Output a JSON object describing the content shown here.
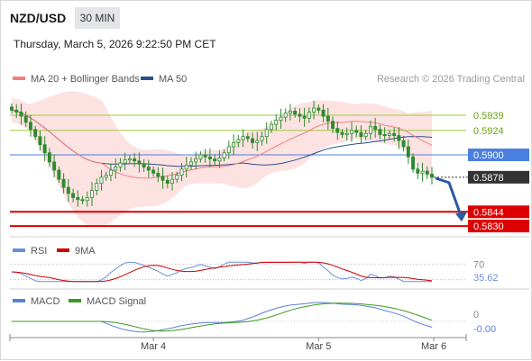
{
  "header": {
    "pair": "NZD/USD",
    "timeframe": "30 MIN",
    "datetime": "Thursday, March 5, 2026 9:22:50 PM CET",
    "credit": "Research © 2026 Trading Central"
  },
  "legend": {
    "ma20_bb": "MA 20 + Bollinger Bands",
    "ma50": "MA 50",
    "rsi": "RSI",
    "rsi_ma": "9MA",
    "macd": "MACD",
    "macd_signal": "MACD Signal"
  },
  "colors": {
    "ma20": "#f08080",
    "ma50": "#2c4f8c",
    "bollinger_fill": "#fde2e2",
    "candle": "#2f8a2f",
    "green_level": "#9acd32",
    "blue_level": "#4a7fe0",
    "red_level": "#dd0000",
    "current_price_tag": "#333333",
    "forecast_arrow": "#2a5aa0",
    "rsi": "#6a8fd8",
    "rsi_ma": "#cc0000",
    "macd": "#5b7fd6",
    "macd_signal": "#3c9a1e"
  },
  "chart_data": {
    "type": "candlestick",
    "ylim": [
      0.5823,
      0.5954
    ],
    "x_labels": [
      "Mar 4",
      "Mar 5",
      "Mar 6"
    ],
    "levels": [
      {
        "name": "resistance-2",
        "value": 0.5939,
        "label": "0.5939",
        "kind": "green"
      },
      {
        "name": "resistance-1",
        "value": 0.5924,
        "label": "0.5924",
        "kind": "green"
      },
      {
        "name": "pivot",
        "value": 0.59,
        "label": "0.5900",
        "kind": "blue"
      },
      {
        "name": "support-1",
        "value": 0.5844,
        "label": "0.5844",
        "kind": "red"
      },
      {
        "name": "support-2",
        "value": 0.583,
        "label": "0.5830",
        "kind": "red"
      }
    ],
    "current_price": {
      "value": 0.5878,
      "label": "0.5878"
    },
    "forecast": {
      "from": 0.5878,
      "to": 0.5844
    },
    "series_close": [
      0.5944,
      0.5942,
      0.5938,
      0.5932,
      0.5925,
      0.5918,
      0.591,
      0.5902,
      0.5893,
      0.5885,
      0.5876,
      0.5868,
      0.5862,
      0.5858,
      0.5856,
      0.5855,
      0.5858,
      0.5865,
      0.5872,
      0.5878,
      0.588,
      0.5885,
      0.5888,
      0.5892,
      0.5895,
      0.5896,
      0.5894,
      0.5891,
      0.5888,
      0.5885,
      0.5882,
      0.5879,
      0.5875,
      0.5872,
      0.5876,
      0.588,
      0.5886,
      0.589,
      0.5893,
      0.5896,
      0.59,
      0.5898,
      0.5896,
      0.5894,
      0.5897,
      0.5902,
      0.5908,
      0.5912,
      0.5915,
      0.5918,
      0.5916,
      0.5912,
      0.5914,
      0.5918,
      0.5925,
      0.593,
      0.5934,
      0.5937,
      0.5941,
      0.5943,
      0.594,
      0.5938,
      0.5936,
      0.5942,
      0.5946,
      0.5944,
      0.5938,
      0.5933,
      0.5926,
      0.5922,
      0.592,
      0.5921,
      0.5924,
      0.5922,
      0.5918,
      0.5921,
      0.5928,
      0.5925,
      0.592,
      0.5919,
      0.5921,
      0.5919,
      0.5914,
      0.5908,
      0.5898,
      0.5886,
      0.5882,
      0.5884,
      0.5881,
      0.5878
    ],
    "rsi": {
      "level": 70,
      "level_label": "70",
      "value": 35.62,
      "value_label": "35.62",
      "ylim": [
        20,
        80
      ]
    },
    "macd": {
      "zero_label": "0",
      "value": -0.0,
      "value_label": "-0.00",
      "ylim": [
        -0.0016,
        0.0016
      ]
    }
  }
}
